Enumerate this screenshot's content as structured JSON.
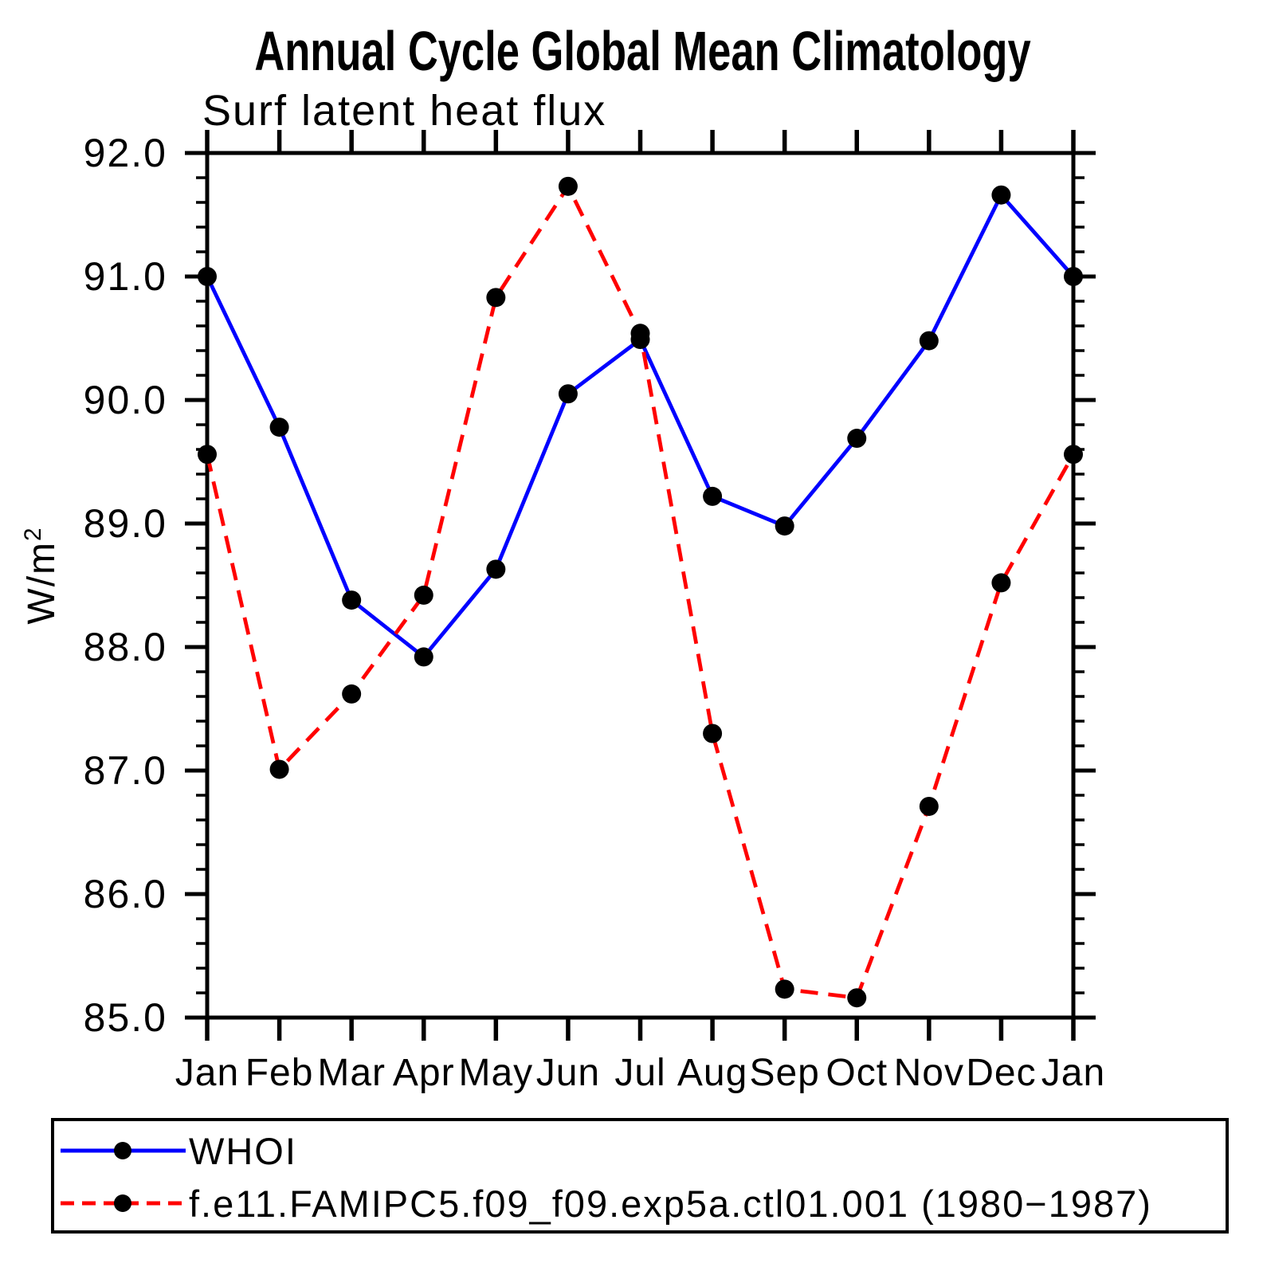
{
  "chart_data": {
    "type": "line",
    "title": "Annual Cycle Global Mean Climatology",
    "subtitle": "Surf latent heat flux",
    "ylabel": "W/m²",
    "ylabel_base": "W/m",
    "ylabel_exp": "2",
    "xlabel": "",
    "categories": [
      "Jan",
      "Feb",
      "Mar",
      "Apr",
      "May",
      "Jun",
      "Jul",
      "Aug",
      "Sep",
      "Oct",
      "Nov",
      "Dec",
      "Jan"
    ],
    "ylim": [
      85.0,
      92.0
    ],
    "ytick_step": 1.0,
    "ytick_minor_step": 0.2,
    "ytick_labels": [
      "85.0",
      "86.0",
      "87.0",
      "88.0",
      "89.0",
      "90.0",
      "91.0",
      "92.0"
    ],
    "grid": false,
    "legend_position": "bottom-left",
    "marker": "filled-circle",
    "marker_color": "#000000",
    "axis_color": "#000000",
    "series": [
      {
        "name": "WHOI",
        "color": "#0000ff",
        "line_style": "solid",
        "values": [
          91.0,
          89.78,
          88.38,
          87.92,
          88.63,
          90.05,
          90.49,
          89.22,
          88.98,
          89.69,
          90.48,
          91.66,
          91.0
        ]
      },
      {
        "name": "f.e11.FAMIPC5.f09_f09.exp5a.ctl01.001 (1980−1987)",
        "color": "#ff0000",
        "line_style": "dashed",
        "values": [
          89.56,
          87.01,
          87.62,
          88.42,
          90.83,
          91.73,
          90.54,
          87.3,
          85.23,
          85.16,
          86.71,
          88.52,
          89.56
        ]
      }
    ]
  }
}
